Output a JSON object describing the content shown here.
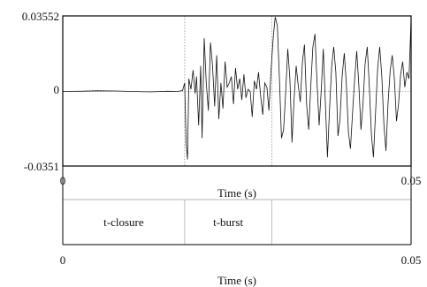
{
  "chart_data": {
    "type": "line",
    "title": "",
    "waveform": {
      "y_max_label": "0.03552",
      "y_zero_label": "0",
      "y_min_label": "-0.0351",
      "ylim": [
        -0.0351,
        0.03552
      ],
      "xlim": [
        0,
        0.05
      ],
      "x_start_label": "0",
      "x_end_label": "0.05",
      "xlabel": "Time (s)",
      "boundaries": [
        0.0175,
        0.03
      ],
      "series": {
        "x": [
          0.0,
          0.0025,
          0.005,
          0.0075,
          0.01,
          0.0125,
          0.015,
          0.0165,
          0.0172,
          0.0175,
          0.0177,
          0.0179,
          0.0181,
          0.0184,
          0.0187,
          0.019,
          0.0192,
          0.0195,
          0.0198,
          0.02,
          0.0203,
          0.0206,
          0.0209,
          0.0212,
          0.0215,
          0.0218,
          0.0221,
          0.0224,
          0.0227,
          0.023,
          0.0233,
          0.0236,
          0.0239,
          0.0242,
          0.0245,
          0.0248,
          0.0251,
          0.0254,
          0.0257,
          0.026,
          0.0263,
          0.0266,
          0.0269,
          0.0272,
          0.0275,
          0.0278,
          0.0281,
          0.0284,
          0.0287,
          0.029,
          0.0293,
          0.0296,
          0.0299,
          0.0302,
          0.0305,
          0.0308,
          0.0311,
          0.0314,
          0.0317,
          0.032,
          0.0323,
          0.0326,
          0.0329,
          0.0332,
          0.0335,
          0.0338,
          0.0341,
          0.0344,
          0.0347,
          0.035,
          0.0353,
          0.0356,
          0.0359,
          0.0362,
          0.0365,
          0.0368,
          0.0371,
          0.0374,
          0.0377,
          0.038,
          0.0383,
          0.0386,
          0.0389,
          0.0392,
          0.0395,
          0.0398,
          0.0401,
          0.0404,
          0.0407,
          0.041,
          0.0413,
          0.0416,
          0.0419,
          0.0422,
          0.0425,
          0.0428,
          0.0431,
          0.0434,
          0.0437,
          0.044,
          0.0443,
          0.0446,
          0.0449,
          0.0452,
          0.0455,
          0.0458,
          0.0461,
          0.0464,
          0.0467,
          0.047,
          0.0473,
          0.0476,
          0.0479,
          0.0482,
          0.0485,
          0.0488,
          0.0491,
          0.0494,
          0.0497,
          0.05
        ],
        "y": [
          0.0,
          0.0001,
          0.0003,
          0.0002,
          0.0,
          -0.0002,
          0.0001,
          0.0,
          0.0004,
          0.004,
          -0.024,
          -0.032,
          0.006,
          0.001,
          0.01,
          -0.001,
          0.007,
          -0.016,
          0.012,
          -0.022,
          0.025,
          0.004,
          -0.009,
          0.023,
          0.012,
          -0.007,
          0.017,
          -0.013,
          0.004,
          -0.008,
          0.014,
          0.002,
          0.004,
          0.007,
          -0.006,
          0.011,
          0.001,
          0.006,
          -0.004,
          0.008,
          -0.003,
          0.001,
          0.0,
          -0.012,
          0.005,
          0.001,
          0.009,
          -0.002,
          -0.011,
          0.004,
          0.002,
          -0.009,
          0.01,
          0.025,
          0.035,
          0.031,
          0.006,
          -0.022,
          -0.018,
          0.0,
          0.02,
          0.006,
          -0.024,
          -0.004,
          0.012,
          0.003,
          -0.005,
          0.014,
          0.022,
          -0.006,
          -0.018,
          0.002,
          0.021,
          0.027,
          0.004,
          -0.016,
          0.0,
          0.02,
          -0.006,
          -0.031,
          -0.008,
          0.012,
          0.021,
          0.009,
          -0.021,
          -0.013,
          0.007,
          0.018,
          0.004,
          -0.019,
          -0.027,
          -0.01,
          0.006,
          0.019,
          0.003,
          -0.018,
          -0.006,
          0.013,
          0.021,
          0.003,
          -0.02,
          -0.031,
          -0.01,
          0.011,
          0.021,
          0.007,
          -0.016,
          -0.028,
          -0.005,
          0.01,
          0.017,
          0.006,
          -0.014,
          -0.006,
          0.008,
          0.014,
          0.002,
          0.009,
          0.006,
          0.034
        ]
      }
    },
    "textgrid": {
      "x_start_label": "0",
      "x_end_label": "0.05",
      "xlabel": "Time (s)",
      "intervals": [
        {
          "label": "t-closure",
          "start": 0,
          "end": 0.0175
        },
        {
          "label": "t-burst",
          "start": 0.0175,
          "end": 0.03
        },
        {
          "label": "",
          "start": 0.03,
          "end": 0.05
        }
      ]
    }
  }
}
